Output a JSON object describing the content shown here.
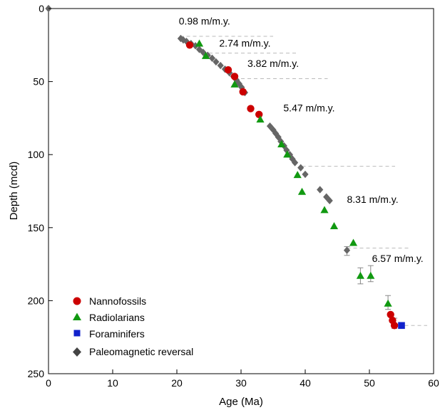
{
  "chart_data": {
    "type": "scatter",
    "xlabel": "Age (Ma)",
    "ylabel": "Depth (mcd)",
    "xlim": [
      0,
      60
    ],
    "ylim": [
      0,
      250
    ],
    "y_inverted": true,
    "x_ticks": [
      0,
      10,
      20,
      30,
      40,
      50,
      60
    ],
    "y_ticks": [
      0,
      50,
      100,
      150,
      200,
      250
    ],
    "grid": false,
    "legend_position": "bottom-left",
    "colors": {
      "nannofossils": "#cc0000",
      "radiolarians": "#119911",
      "foraminifers": "#1122cc",
      "paleomagnetic": "#666666",
      "rate_lines": "#bbbbbb"
    },
    "series": [
      {
        "name": "Nannofossils",
        "marker": "circle",
        "points": [
          {
            "x": 22.0,
            "y": 25.0
          },
          {
            "x": 28.0,
            "y": 42.0
          },
          {
            "x": 29.0,
            "y": 46.5
          },
          {
            "x": 30.3,
            "y": 57.0
          },
          {
            "x": 31.5,
            "y": 68.5
          },
          {
            "x": 32.8,
            "y": 72.5
          },
          {
            "x": 53.3,
            "y": 209.5
          },
          {
            "x": 53.6,
            "y": 213.5
          },
          {
            "x": 53.9,
            "y": 217.0
          }
        ]
      },
      {
        "name": "Radiolarians",
        "marker": "triangle",
        "points": [
          {
            "x": 23.5,
            "y": 24.0
          },
          {
            "x": 24.5,
            "y": 32.5
          },
          {
            "x": 29.0,
            "y": 52.0
          },
          {
            "x": 33.0,
            "y": 76.0
          },
          {
            "x": 36.3,
            "y": 93.0
          },
          {
            "x": 37.2,
            "y": 100.0
          },
          {
            "x": 38.8,
            "y": 114.0
          },
          {
            "x": 39.5,
            "y": 125.5
          },
          {
            "x": 43.0,
            "y": 138.0
          },
          {
            "x": 44.5,
            "y": 149.0
          },
          {
            "x": 47.5,
            "y": 160.5
          },
          {
            "x": 48.6,
            "y": 183.0
          },
          {
            "x": 50.2,
            "y": 183.0
          },
          {
            "x": 52.9,
            "y": 202.0
          }
        ]
      },
      {
        "name": "Foraminifers",
        "marker": "square",
        "points": [
          {
            "x": 55.0,
            "y": 217.0
          }
        ]
      },
      {
        "name": "Paleomagnetic reversal",
        "marker": "diamond",
        "points": [
          {
            "x": 0.0,
            "y": 0.0
          },
          {
            "x": 20.6,
            "y": 20.5
          },
          {
            "x": 21.0,
            "y": 21.5
          },
          {
            "x": 21.5,
            "y": 22.5
          },
          {
            "x": 22.2,
            "y": 24.0
          },
          {
            "x": 22.9,
            "y": 25.5
          },
          {
            "x": 23.5,
            "y": 28.0
          },
          {
            "x": 24.1,
            "y": 30.0
          },
          {
            "x": 24.8,
            "y": 32.0
          },
          {
            "x": 25.5,
            "y": 34.0
          },
          {
            "x": 26.1,
            "y": 36.5
          },
          {
            "x": 26.8,
            "y": 39.0
          },
          {
            "x": 27.5,
            "y": 41.5
          },
          {
            "x": 28.2,
            "y": 44.0
          },
          {
            "x": 28.8,
            "y": 46.5
          },
          {
            "x": 29.3,
            "y": 49.0
          },
          {
            "x": 29.7,
            "y": 51.5
          },
          {
            "x": 30.1,
            "y": 54.0
          },
          {
            "x": 30.6,
            "y": 57.5
          },
          {
            "x": 34.5,
            "y": 80.5
          },
          {
            "x": 35.0,
            "y": 83.0
          },
          {
            "x": 35.4,
            "y": 85.5
          },
          {
            "x": 35.8,
            "y": 88.0
          },
          {
            "x": 36.2,
            "y": 91.0
          },
          {
            "x": 36.7,
            "y": 94.0
          },
          {
            "x": 37.1,
            "y": 97.0
          },
          {
            "x": 37.6,
            "y": 100.0
          },
          {
            "x": 38.0,
            "y": 103.0
          },
          {
            "x": 38.4,
            "y": 105.5
          },
          {
            "x": 39.3,
            "y": 109.0
          },
          {
            "x": 40.0,
            "y": 113.5
          },
          {
            "x": 42.3,
            "y": 124.0
          },
          {
            "x": 43.3,
            "y": 129.0
          },
          {
            "x": 43.8,
            "y": 131.5
          },
          {
            "x": 46.5,
            "y": 165.5
          }
        ]
      }
    ],
    "error_bars": [
      {
        "x": 46.5,
        "y_low": 163.0,
        "y_high": 169.0
      },
      {
        "x": 48.6,
        "y_low": 177.5,
        "y_high": 188.5
      },
      {
        "x": 50.2,
        "y_low": 176.0,
        "y_high": 187.0
      },
      {
        "x": 52.9,
        "y_low": 196.5,
        "y_high": 206.0
      },
      {
        "x": 53.9,
        "y_low": 212.0,
        "y_high": 219.0
      }
    ],
    "rate_lines": [
      {
        "x1": 20.5,
        "x2": 35.0,
        "y": 19.0
      },
      {
        "x1": 24.0,
        "x2": 39.0,
        "y": 30.5
      },
      {
        "x1": 29.0,
        "x2": 43.5,
        "y": 48.0
      },
      {
        "x1": 39.5,
        "x2": 54.0,
        "y": 108.0
      },
      {
        "x1": 46.5,
        "x2": 56.5,
        "y": 164.0
      },
      {
        "x1": 54.5,
        "x2": 59.0,
        "y": 217.0
      }
    ],
    "annotations": [
      {
        "text": "0.98 m/m.y.",
        "x": 20.3,
        "y": 11.0
      },
      {
        "text": "2.74 m/m.y.",
        "x": 26.6,
        "y": 26.0
      },
      {
        "text": "3.82 m/m.y.",
        "x": 31.0,
        "y": 40.0
      },
      {
        "text": "5.47 m/m.y.",
        "x": 36.6,
        "y": 70.5
      },
      {
        "text": "8.31 m/m.y.",
        "x": 46.5,
        "y": 133.0
      },
      {
        "text": "6.57 m/m.y.",
        "x": 50.4,
        "y": 173.5
      }
    ]
  }
}
